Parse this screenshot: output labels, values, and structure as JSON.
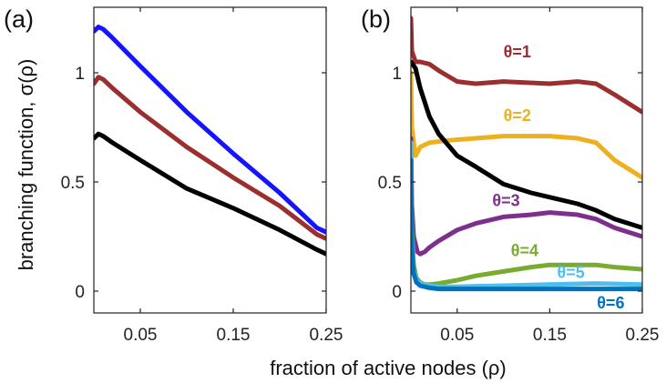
{
  "figure": {
    "xlabel": "fraction of active nodes  (ρ)",
    "ylabel": "branching function, σ(ρ)"
  },
  "chart_data": [
    {
      "type": "line",
      "panel": "(a)",
      "xlabel": "fraction of active nodes  (ρ)",
      "ylabel": "branching function, σ(ρ)",
      "xlim": [
        0,
        0.25
      ],
      "ylim": [
        -0.1,
        1.3
      ],
      "xticks": [
        0.05,
        0.15,
        0.25
      ],
      "xtick_labels": [
        "0.05",
        "0.15",
        "0.25"
      ],
      "yticks": [
        0,
        0.5,
        1
      ],
      "ytick_labels": [
        "0",
        "0.5",
        "1"
      ],
      "grid": false,
      "series": [
        {
          "color": "#1414ff",
          "x": [
            0.0,
            0.005,
            0.01,
            0.02,
            0.05,
            0.1,
            0.15,
            0.2,
            0.24,
            0.25
          ],
          "y": [
            1.19,
            1.21,
            1.2,
            1.16,
            1.03,
            0.82,
            0.63,
            0.45,
            0.29,
            0.27
          ]
        },
        {
          "color": "#9b2f2f",
          "x": [
            0.0,
            0.005,
            0.01,
            0.02,
            0.05,
            0.1,
            0.15,
            0.2,
            0.24,
            0.25
          ],
          "y": [
            0.95,
            0.98,
            0.97,
            0.93,
            0.82,
            0.66,
            0.52,
            0.39,
            0.26,
            0.24
          ]
        },
        {
          "color": "#000000",
          "x": [
            0.0,
            0.005,
            0.01,
            0.02,
            0.05,
            0.1,
            0.15,
            0.2,
            0.24,
            0.25
          ],
          "y": [
            0.7,
            0.72,
            0.71,
            0.68,
            0.6,
            0.47,
            0.38,
            0.28,
            0.19,
            0.17
          ]
        }
      ]
    },
    {
      "type": "line",
      "panel": "(b)",
      "xlim": [
        0,
        0.25
      ],
      "ylim": [
        -0.1,
        1.3
      ],
      "xticks": [
        0.05,
        0.15,
        0.25
      ],
      "xtick_labels": [
        "0.05",
        "0.15",
        "0.25"
      ],
      "yticks": [
        0,
        0.5,
        1
      ],
      "ytick_labels": [
        "0",
        "0.5",
        "1"
      ],
      "grid": false,
      "annotations": [
        {
          "text": "θ=1",
          "color": "#9b2f2f",
          "x": 0.1,
          "y": 1.07
        },
        {
          "text": "θ=2",
          "color": "#edb120",
          "x": 0.1,
          "y": 0.78
        },
        {
          "text": "θ=3",
          "color": "#7e2f8e",
          "x": 0.088,
          "y": 0.39
        },
        {
          "text": "θ=4",
          "color": "#77ac30",
          "x": 0.108,
          "y": 0.16
        },
        {
          "text": "θ=5",
          "color": "#4dbeee",
          "x": 0.158,
          "y": 0.06
        },
        {
          "text": "θ=6",
          "color": "#0072bd",
          "x": 0.201,
          "y": -0.08
        }
      ],
      "series": [
        {
          "name": "θ=1",
          "color": "#9b2f2f",
          "x": [
            0.0,
            0.001,
            0.005,
            0.01,
            0.02,
            0.03,
            0.05,
            0.07,
            0.1,
            0.15,
            0.18,
            0.2,
            0.22,
            0.25
          ],
          "y": [
            1.25,
            1.1,
            1.05,
            1.05,
            1.04,
            1.01,
            0.96,
            0.95,
            0.96,
            0.95,
            0.96,
            0.95,
            0.9,
            0.82
          ]
        },
        {
          "name": "θ=2",
          "color": "#edb120",
          "x": [
            0.0,
            0.001,
            0.005,
            0.01,
            0.02,
            0.04,
            0.07,
            0.1,
            0.15,
            0.18,
            0.2,
            0.22,
            0.25
          ],
          "y": [
            1.0,
            0.75,
            0.62,
            0.66,
            0.68,
            0.69,
            0.7,
            0.71,
            0.71,
            0.7,
            0.68,
            0.6,
            0.52
          ]
        },
        {
          "name": "",
          "color": "#000000",
          "x": [
            0.0,
            0.005,
            0.01,
            0.02,
            0.03,
            0.05,
            0.07,
            0.1,
            0.13,
            0.15,
            0.18,
            0.2,
            0.22,
            0.25
          ],
          "y": [
            1.05,
            1.02,
            0.93,
            0.8,
            0.72,
            0.62,
            0.57,
            0.49,
            0.45,
            0.43,
            0.4,
            0.37,
            0.33,
            0.29
          ]
        },
        {
          "name": "θ=3",
          "color": "#7e2f8e",
          "x": [
            0.0,
            0.001,
            0.003,
            0.007,
            0.01,
            0.015,
            0.02,
            0.03,
            0.05,
            0.07,
            0.1,
            0.13,
            0.15,
            0.18,
            0.2,
            0.22,
            0.25
          ],
          "y": [
            0.7,
            0.4,
            0.25,
            0.18,
            0.17,
            0.18,
            0.2,
            0.23,
            0.28,
            0.31,
            0.34,
            0.35,
            0.36,
            0.35,
            0.33,
            0.29,
            0.25
          ]
        },
        {
          "name": "θ=4",
          "color": "#77ac30",
          "x": [
            0.0,
            0.001,
            0.003,
            0.006,
            0.01,
            0.015,
            0.02,
            0.03,
            0.05,
            0.07,
            0.1,
            0.13,
            0.15,
            0.18,
            0.2,
            0.22,
            0.25
          ],
          "y": [
            0.68,
            0.3,
            0.12,
            0.06,
            0.04,
            0.03,
            0.03,
            0.035,
            0.05,
            0.07,
            0.09,
            0.11,
            0.12,
            0.12,
            0.12,
            0.11,
            0.1
          ]
        },
        {
          "name": "θ=5",
          "color": "#4dbeee",
          "x": [
            0.0,
            0.001,
            0.003,
            0.006,
            0.01,
            0.02,
            0.03,
            0.05,
            0.1,
            0.15,
            0.2,
            0.25
          ],
          "y": [
            0.68,
            0.25,
            0.1,
            0.05,
            0.035,
            0.025,
            0.02,
            0.02,
            0.025,
            0.03,
            0.035,
            0.03
          ]
        },
        {
          "name": "θ=6",
          "color": "#0072bd",
          "x": [
            0.0,
            0.001,
            0.003,
            0.006,
            0.01,
            0.02,
            0.03,
            0.05,
            0.1,
            0.15,
            0.2,
            0.25
          ],
          "y": [
            0.6,
            0.2,
            0.08,
            0.04,
            0.025,
            0.015,
            0.01,
            0.01,
            0.01,
            0.01,
            0.01,
            0.01
          ]
        }
      ]
    }
  ]
}
